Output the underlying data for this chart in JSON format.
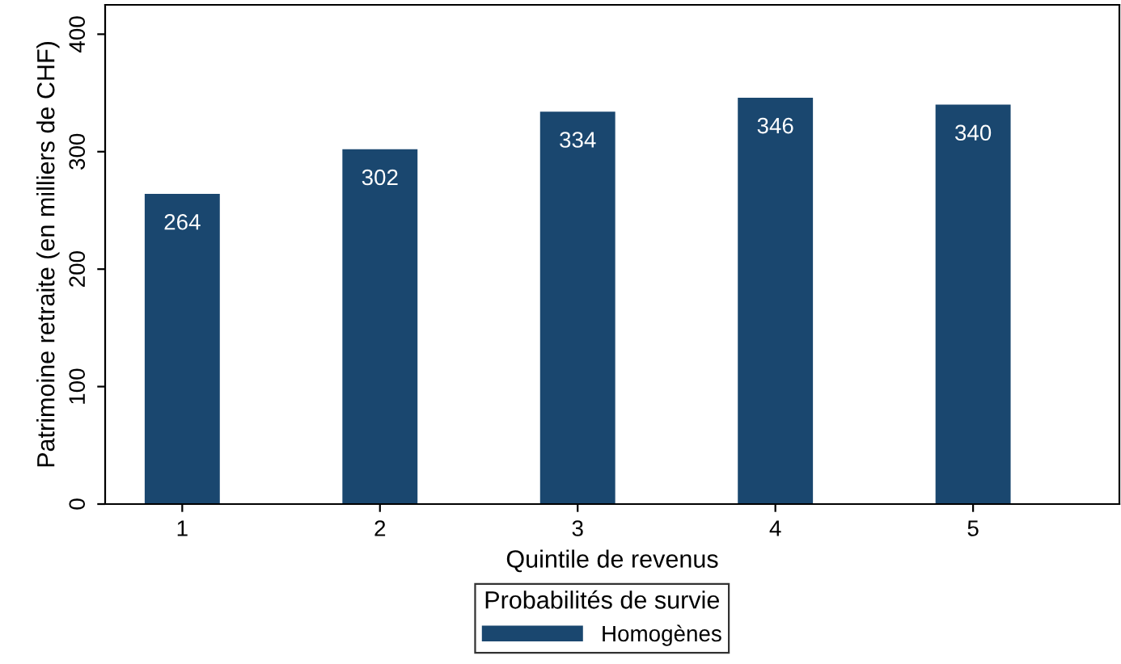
{
  "chart_data": {
    "type": "bar",
    "xlabel": "Quintile de revenus",
    "ylabel": "Patrimoine retraite (en milliers de CHF)",
    "legend_title": "Probabilités de survie",
    "categories": [
      "1",
      "2",
      "3",
      "4",
      "5"
    ],
    "series": [
      {
        "name": "Homogènes",
        "color": "#1a476f",
        "values": [
          264,
          302,
          334,
          346,
          340
        ]
      }
    ],
    "ylim": [
      0,
      425
    ],
    "yticks": [
      0,
      100,
      200,
      300,
      400
    ],
    "grid": false,
    "legend": "bottom",
    "data_labels": true
  }
}
